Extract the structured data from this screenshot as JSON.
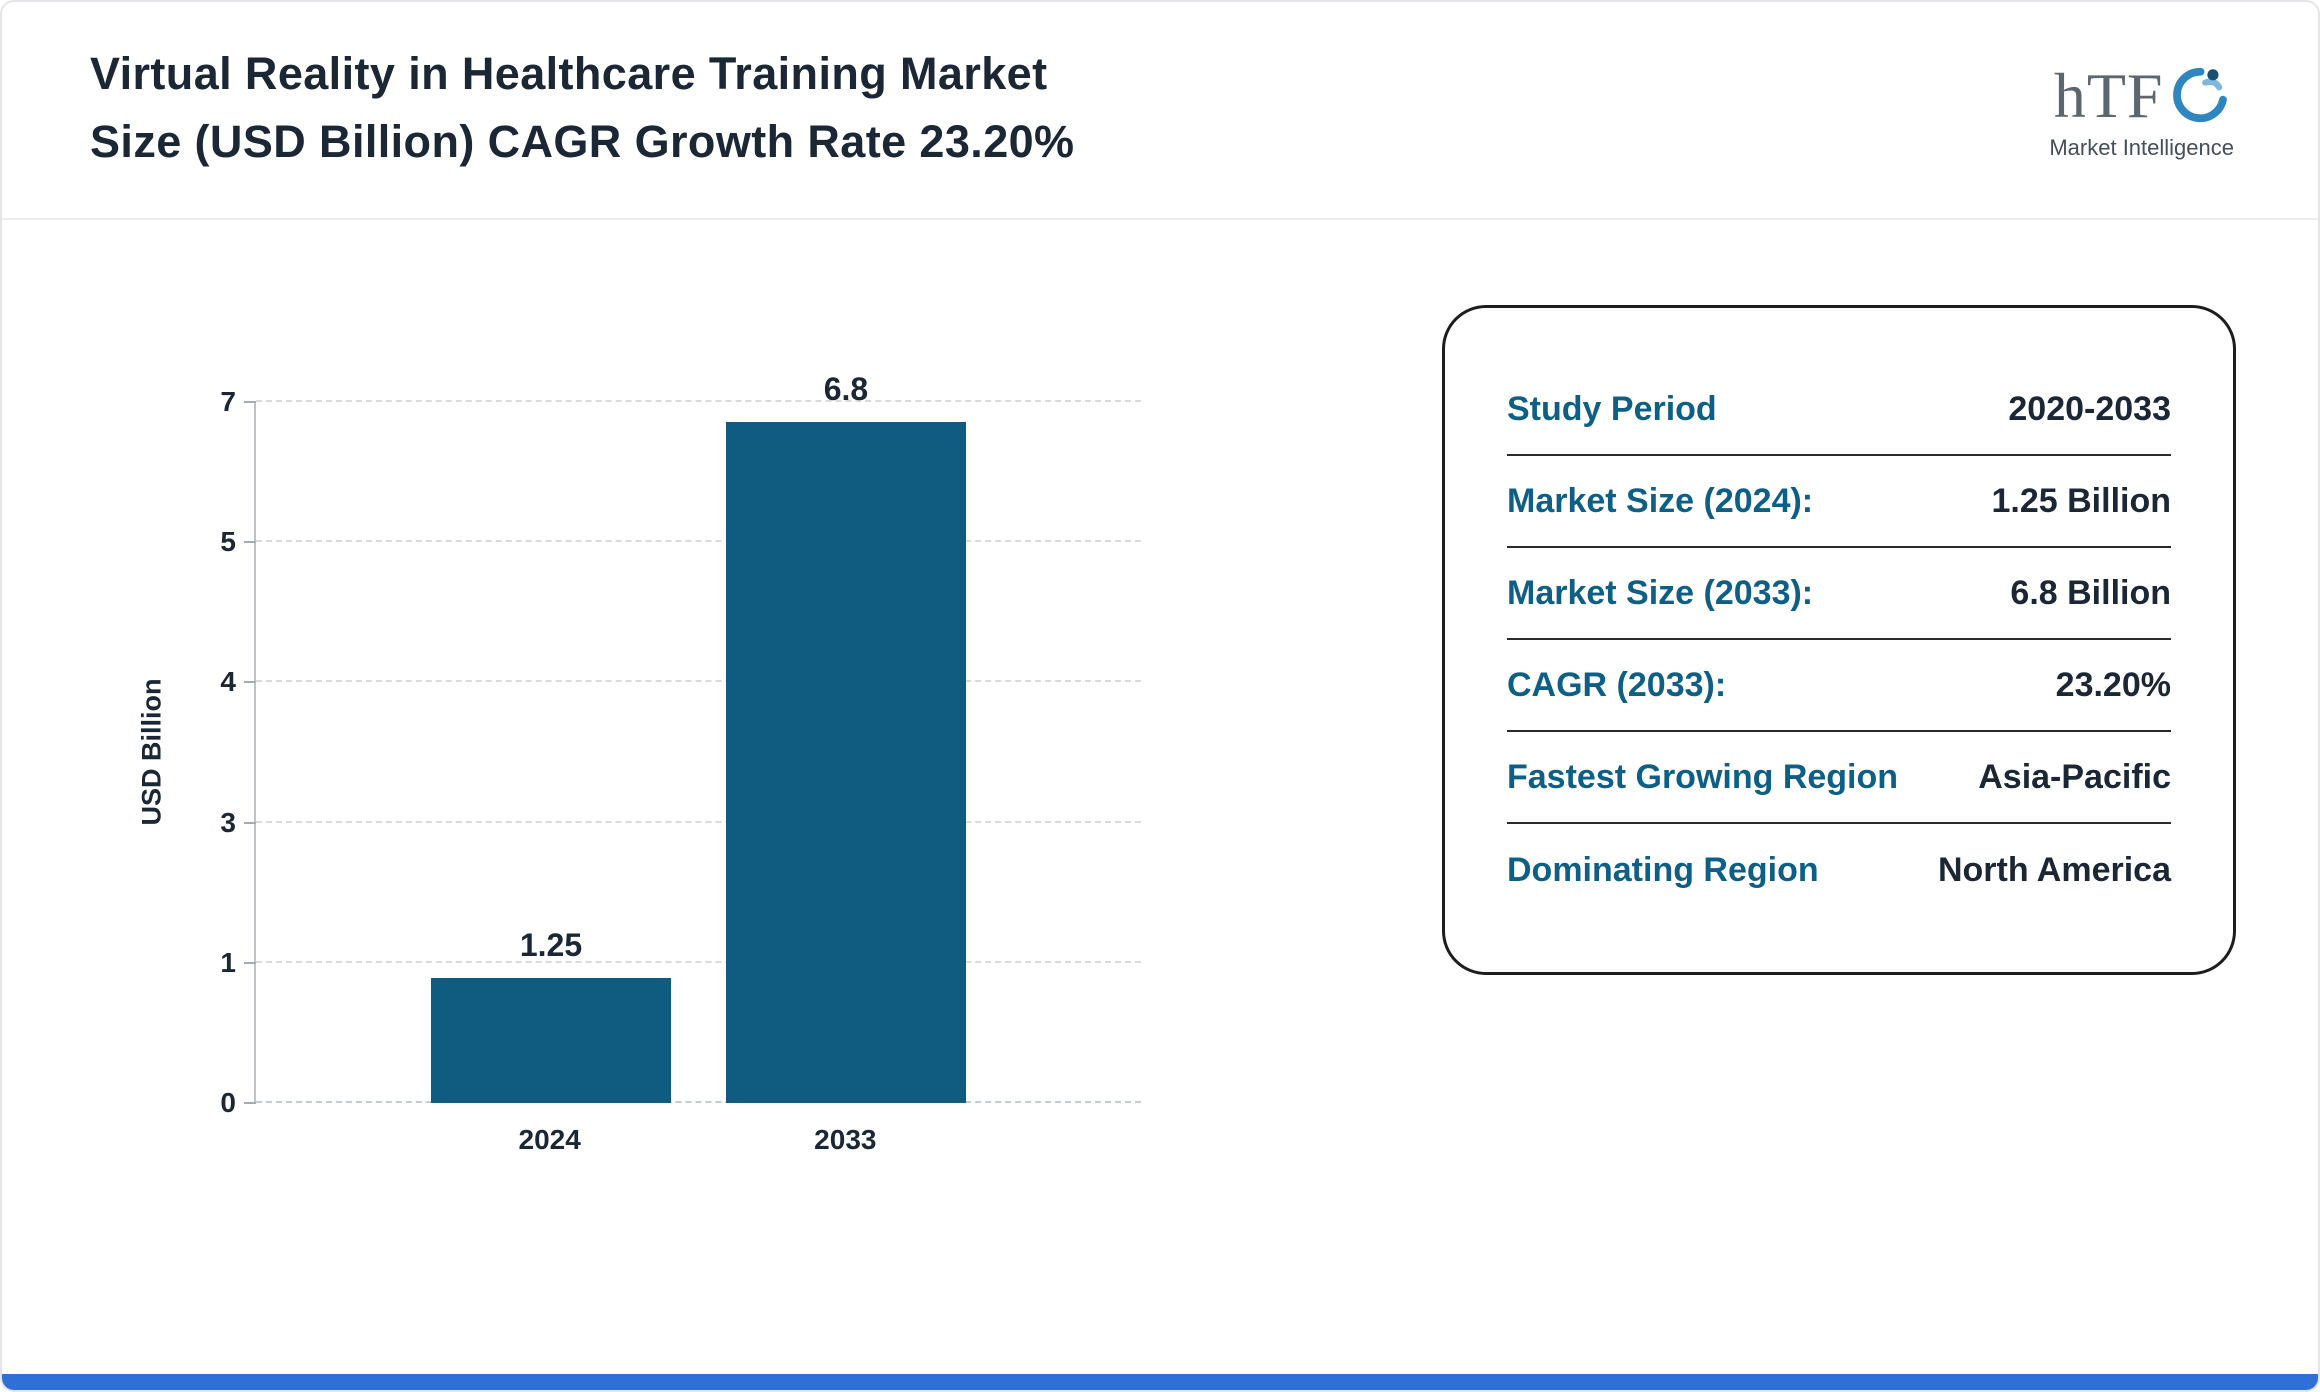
{
  "header": {
    "title_line1": "Virtual Reality in Healthcare Training Market",
    "title_line2": "Size (USD Billion) CAGR Growth Rate 23.20%",
    "logo": {
      "text": "hTF",
      "subtext": "Market Intelligence",
      "icon": "swirl-person-icon"
    }
  },
  "chart_data": {
    "type": "bar",
    "title": "Virtual Reality in Healthcare Training Market Size (USD Billion) CAGR Growth Rate 23.20%",
    "categories": [
      "2024",
      "2033"
    ],
    "values": [
      1.25,
      6.8
    ],
    "value_labels": [
      "1.25",
      "6.8"
    ],
    "xlabel": "",
    "ylabel": "USD Billion",
    "yticks": [
      0,
      1,
      3,
      4,
      5,
      7
    ],
    "ylim": [
      0,
      7
    ],
    "grid": "dashed-horizontal",
    "legend": "none",
    "bar_color": "#0f5c80"
  },
  "info_card": {
    "rows": [
      {
        "label": "Study Period",
        "value": "2020-2033"
      },
      {
        "label": "Market Size (2024):",
        "value": "1.25 Billion"
      },
      {
        "label": "Market Size (2033):",
        "value": "6.8 Billion"
      },
      {
        "label": "CAGR (2033):",
        "value": "23.20%"
      },
      {
        "label": "Fastest Growing Region",
        "value": "Asia-Pacific"
      },
      {
        "label": "Dominating Region",
        "value": "North America"
      }
    ]
  },
  "colors": {
    "accent_teal": "#0f5c80",
    "title_navy": "#1b2734",
    "card_border": "#1d1d1f",
    "gridline": "#d8dadc",
    "bottom_strip_blue": "#2f6fd8",
    "logo_swirl_blue": "#2e86c1"
  }
}
